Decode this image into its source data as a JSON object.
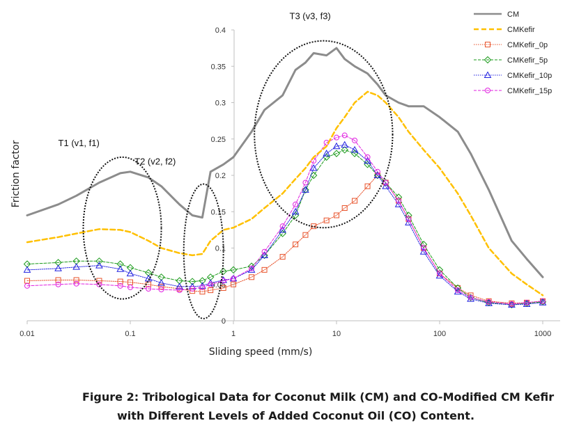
{
  "chart_data": {
    "type": "line",
    "xscale": "log",
    "xlabel": "Sliding speed (mm/s)",
    "ylabel": "Friction factor",
    "xlim": [
      0.01,
      1000
    ],
    "ylim": [
      0,
      0.4
    ],
    "xticks": [
      0.01,
      0.1,
      1,
      10,
      100,
      1000
    ],
    "xtick_labels": [
      "0.01",
      "0.1",
      "1",
      "10",
      "100",
      "1000"
    ],
    "yticks": [
      0,
      0.05,
      0.1,
      0.15,
      0.2,
      0.25,
      0.3,
      0.35,
      0.4
    ],
    "ytick_labels": [
      "0",
      "0.05",
      "0.1",
      "0.15",
      "0.2",
      "0.25",
      "0.3",
      "0.35",
      "0.4"
    ],
    "legend_position": "top-right",
    "grid": false,
    "x": [
      0.01,
      0.02,
      0.03,
      0.05,
      0.08,
      0.1,
      0.15,
      0.2,
      0.3,
      0.4,
      0.5,
      0.6,
      0.8,
      1,
      1.5,
      2,
      3,
      4,
      5,
      6,
      8,
      10,
      12,
      15,
      20,
      25,
      30,
      40,
      50,
      70,
      100,
      150,
      200,
      300,
      500,
      700,
      1000
    ],
    "series": [
      {
        "name": "CM",
        "color": "#8c8c8c",
        "dash": "solid",
        "marker": "none",
        "values": [
          0.145,
          0.16,
          0.172,
          0.19,
          0.203,
          0.205,
          0.197,
          0.185,
          0.16,
          0.145,
          0.142,
          0.205,
          0.215,
          0.225,
          0.26,
          0.29,
          0.31,
          0.345,
          0.355,
          0.368,
          0.365,
          0.375,
          0.36,
          0.35,
          0.34,
          0.325,
          0.31,
          0.3,
          0.295,
          0.295,
          0.28,
          0.26,
          0.23,
          0.18,
          0.11,
          0.085,
          0.06
        ]
      },
      {
        "name": "CMKefir",
        "color": "#ffc000",
        "dash": "dash",
        "marker": "none",
        "values": [
          0.108,
          0.115,
          0.12,
          0.126,
          0.125,
          0.122,
          0.11,
          0.1,
          0.093,
          0.09,
          0.092,
          0.11,
          0.125,
          0.128,
          0.14,
          0.155,
          0.175,
          0.195,
          0.21,
          0.225,
          0.24,
          0.265,
          0.28,
          0.3,
          0.315,
          0.31,
          0.3,
          0.28,
          0.26,
          0.235,
          0.21,
          0.175,
          0.145,
          0.1,
          0.065,
          0.05,
          0.035
        ]
      },
      {
        "name": "CMKefir_0p",
        "color": "#e8522a",
        "dash": "dot",
        "marker": "square",
        "values": [
          0.055,
          0.056,
          0.056,
          0.055,
          0.054,
          0.053,
          0.05,
          0.047,
          0.044,
          0.041,
          0.04,
          0.042,
          0.045,
          0.05,
          0.06,
          0.07,
          0.088,
          0.105,
          0.118,
          0.13,
          0.138,
          0.145,
          0.155,
          0.165,
          0.185,
          0.2,
          0.19,
          0.165,
          0.14,
          0.1,
          0.065,
          0.045,
          0.035,
          0.027,
          0.024,
          0.025,
          0.027
        ]
      },
      {
        "name": "CMKefir_5p",
        "color": "#1a9a1a",
        "dash": "dash",
        "marker": "diamond",
        "values": [
          0.078,
          0.08,
          0.082,
          0.082,
          0.078,
          0.073,
          0.066,
          0.06,
          0.055,
          0.054,
          0.055,
          0.06,
          0.068,
          0.07,
          0.075,
          0.09,
          0.12,
          0.145,
          0.18,
          0.2,
          0.225,
          0.23,
          0.235,
          0.23,
          0.215,
          0.2,
          0.19,
          0.17,
          0.145,
          0.105,
          0.07,
          0.045,
          0.032,
          0.025,
          0.022,
          0.024,
          0.026
        ]
      },
      {
        "name": "CMKefir_10p",
        "color": "#2020e0",
        "dash": "dot",
        "marker": "triangle",
        "values": [
          0.07,
          0.072,
          0.074,
          0.076,
          0.071,
          0.065,
          0.058,
          0.052,
          0.047,
          0.047,
          0.048,
          0.052,
          0.056,
          0.058,
          0.07,
          0.09,
          0.125,
          0.15,
          0.18,
          0.21,
          0.23,
          0.24,
          0.242,
          0.235,
          0.22,
          0.2,
          0.185,
          0.16,
          0.135,
          0.095,
          0.062,
          0.04,
          0.03,
          0.024,
          0.022,
          0.023,
          0.025
        ]
      },
      {
        "name": "CMKefir_15p",
        "color": "#e020e0",
        "dash": "dash",
        "marker": "circle",
        "values": [
          0.048,
          0.05,
          0.051,
          0.05,
          0.048,
          0.046,
          0.044,
          0.043,
          0.042,
          0.044,
          0.046,
          0.05,
          0.055,
          0.058,
          0.072,
          0.095,
          0.13,
          0.16,
          0.19,
          0.22,
          0.245,
          0.252,
          0.255,
          0.248,
          0.225,
          0.205,
          0.19,
          0.165,
          0.14,
          0.1,
          0.065,
          0.042,
          0.032,
          0.026,
          0.023,
          0.025,
          0.027
        ]
      }
    ],
    "annotations": [
      {
        "label": "T1 (v1, f1)",
        "ellipse_x": [
          0.035,
          0.2
        ],
        "ellipse_y": [
          0.03,
          0.225
        ],
        "label_at": [
          0.02,
          0.24
        ]
      },
      {
        "label": "T2 (v2, f2)",
        "ellipse_x": [
          0.33,
          0.8
        ],
        "ellipse_y": [
          0.003,
          0.188
        ],
        "label_at": [
          0.11,
          0.215
        ]
      },
      {
        "label": "T3 (v3, f3)",
        "ellipse_x": [
          1.6,
          35
        ],
        "ellipse_y": [
          0.128,
          0.385
        ],
        "label_at": [
          3.5,
          0.415
        ]
      }
    ]
  },
  "caption": {
    "line1": "Figure 2: Tribological Data for Coconut Milk (CM) and CO-Modified CM Kefir",
    "line2": "with Different Levels of Added Coconut Oil (CO) Content."
  }
}
